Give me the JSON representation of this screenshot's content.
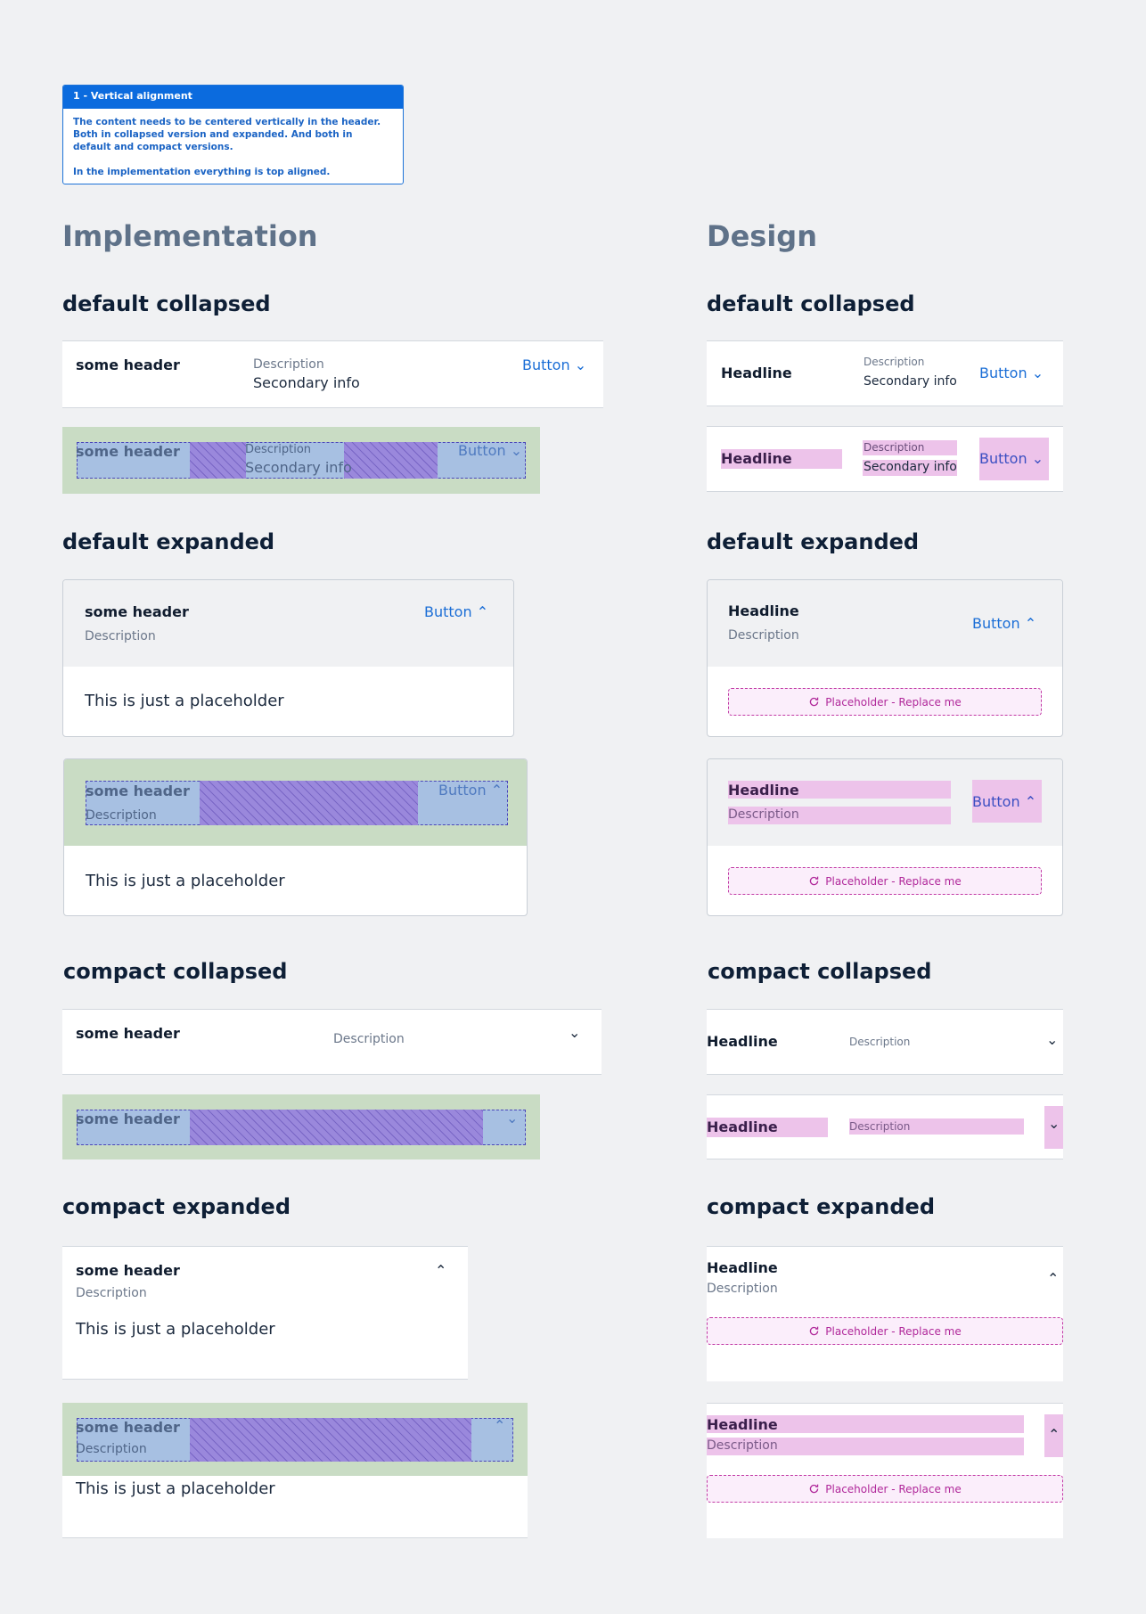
{
  "note": {
    "title": "1 - Vertical alignment",
    "line1": "The content needs to be centered vertically in the header. Both in collapsed version and expanded. And both in default and compact versions.",
    "line2": "In the implementation everything is top aligned."
  },
  "columns": {
    "left": "Implementation",
    "right": "Design"
  },
  "sections": {
    "default_collapsed": "default collapsed",
    "default_expanded": "default expanded",
    "compact_collapsed": "compact collapsed",
    "compact_expanded": "compact expanded"
  },
  "impl": {
    "header": "some header",
    "description": "Description",
    "secondary": "Secondary info",
    "button": "Button",
    "placeholder": "This is just a placeholder"
  },
  "design": {
    "headline": "Headline",
    "description": "Description",
    "secondary": "Secondary info",
    "button": "Button",
    "placeholder": "Placeholder - Replace me"
  },
  "icons": {
    "down": "chevron-down-icon",
    "up": "chevron-up-icon",
    "refresh": "refresh-icon"
  },
  "colors": {
    "accent": "#1b6ed6",
    "overlay_green": "#c9dcc4",
    "overlay_blue": "#a7c0e2",
    "overlay_purple": "#9a88dc",
    "overlay_pink": "#edc3ea"
  }
}
